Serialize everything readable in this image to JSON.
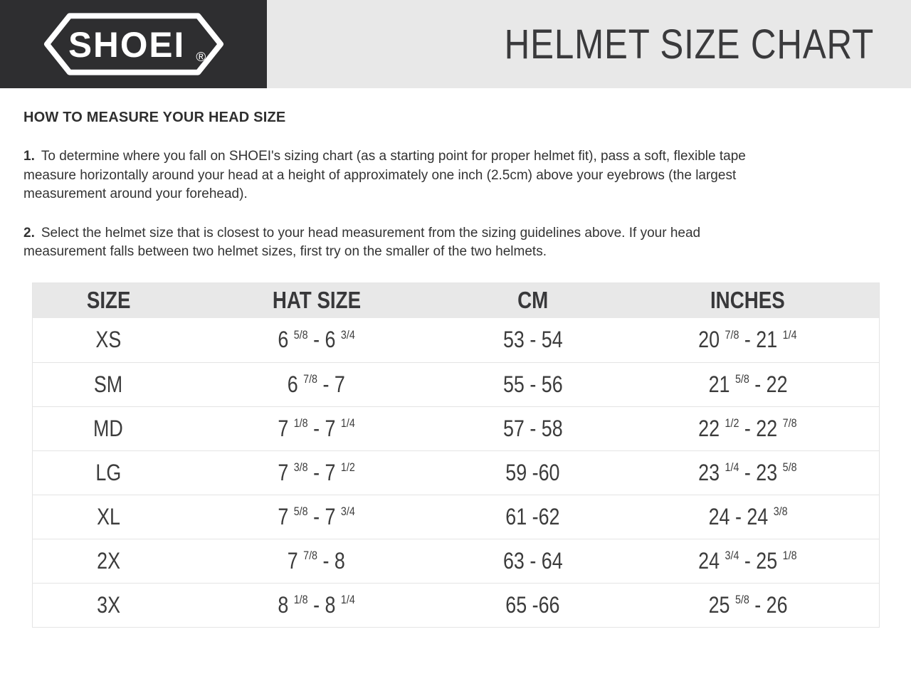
{
  "colors": {
    "brand_dark": "#2e2e30",
    "band_gray": "#e8e8e8",
    "text_dark": "#333333",
    "border": "#e4e4e4"
  },
  "header": {
    "logo": {
      "brand": "SHOEI",
      "registered": "®"
    },
    "title": "HELMET SIZE CHART"
  },
  "instructions": {
    "heading": "HOW TO MEASURE YOUR HEAD SIZE",
    "steps": [
      {
        "num": "1.",
        "text": "To determine where you fall on SHOEI's sizing chart (as a starting point for proper helmet fit), pass a soft, flexible tape\nmeasure horizontally around your head at a height of approximately one inch (2.5cm) above your eyebrows (the largest\nmeasurement around your forehead)."
      },
      {
        "num": "2.",
        "text": "Select the helmet size that is closest to your head measurement from the sizing guidelines above. If your head\nmeasurement falls between two helmet sizes, first try on the smaller of the two helmets."
      }
    ]
  },
  "size_table": {
    "headers": [
      "SIZE",
      "HAT SIZE",
      "CM",
      "INCHES"
    ],
    "rows": [
      {
        "size": "XS",
        "hat_size": "6 {5/8} - 6 {3/4}",
        "cm": "53 - 54",
        "inches": "20 {7/8} - 21 {1/4}"
      },
      {
        "size": "SM",
        "hat_size": "6 {7/8} - 7",
        "cm": "55 - 56",
        "inches": "21 {5/8} - 22"
      },
      {
        "size": "MD",
        "hat_size": "7 {1/8} - 7 {1/4}",
        "cm": "57 - 58",
        "inches": "22 {1/2} - 22 {7/8}"
      },
      {
        "size": "LG",
        "hat_size": "7 {3/8} - 7 {1/2}",
        "cm": "59 -60",
        "inches": "23 {1/4} - 23 {5/8}"
      },
      {
        "size": "XL",
        "hat_size": "7 {5/8} - 7 {3/4}",
        "cm": "61 -62",
        "inches": "24 - 24 {3/8}"
      },
      {
        "size": "2X",
        "hat_size": "7 {7/8} - 8",
        "cm": "63 - 64",
        "inches": "24 {3/4} - 25 {1/8}"
      },
      {
        "size": "3X",
        "hat_size": "8 {1/8} - 8 {1/4}",
        "cm": "65 -66",
        "inches": "25 {5/8} - 26"
      }
    ]
  }
}
